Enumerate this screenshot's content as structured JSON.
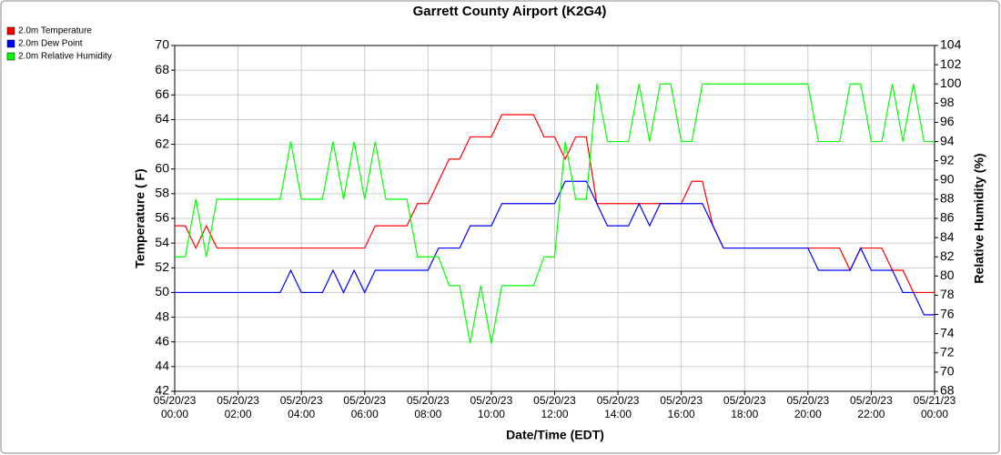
{
  "chart_data": {
    "type": "line",
    "title": "Garrett County Airport (K2G4)",
    "xlabel": "Date/Time (EDT)",
    "ylabel": "Temperature ( F)",
    "y2label": "Relative Humidity (%)",
    "x": [
      "05/20/23 00:00",
      "05/20/23 00:20",
      "05/20/23 00:40",
      "05/20/23 01:00",
      "05/20/23 01:20",
      "05/20/23 01:40",
      "05/20/23 02:00",
      "05/20/23 02:20",
      "05/20/23 02:40",
      "05/20/23 03:00",
      "05/20/23 03:20",
      "05/20/23 03:40",
      "05/20/23 04:00",
      "05/20/23 04:20",
      "05/20/23 04:40",
      "05/20/23 05:00",
      "05/20/23 05:20",
      "05/20/23 05:40",
      "05/20/23 06:00",
      "05/20/23 06:20",
      "05/20/23 06:40",
      "05/20/23 07:00",
      "05/20/23 07:20",
      "05/20/23 07:40",
      "05/20/23 08:00",
      "05/20/23 08:20",
      "05/20/23 08:40",
      "05/20/23 09:00",
      "05/20/23 09:20",
      "05/20/23 09:40",
      "05/20/23 10:00",
      "05/20/23 10:20",
      "05/20/23 10:40",
      "05/20/23 11:00",
      "05/20/23 11:20",
      "05/20/23 11:40",
      "05/20/23 12:00",
      "05/20/23 12:20",
      "05/20/23 12:40",
      "05/20/23 13:00",
      "05/20/23 13:20",
      "05/20/23 13:40",
      "05/20/23 14:00",
      "05/20/23 14:20",
      "05/20/23 14:40",
      "05/20/23 15:00",
      "05/20/23 15:20",
      "05/20/23 15:40",
      "05/20/23 16:00",
      "05/20/23 16:20",
      "05/20/23 16:40",
      "05/20/23 17:00",
      "05/20/23 17:20",
      "05/20/23 17:40",
      "05/20/23 18:00",
      "05/20/23 18:20",
      "05/20/23 18:40",
      "05/20/23 19:00",
      "05/20/23 19:20",
      "05/20/23 19:40",
      "05/20/23 20:00",
      "05/20/23 20:20",
      "05/20/23 20:40",
      "05/20/23 21:00",
      "05/20/23 21:20",
      "05/20/23 21:40",
      "05/20/23 22:00",
      "05/20/23 22:20",
      "05/20/23 22:40",
      "05/20/23 23:00",
      "05/20/23 23:20",
      "05/20/23 23:40",
      "05/21/23 00:00"
    ],
    "series": [
      {
        "name": "2.0m Temperature",
        "color": "#ff0000",
        "axis": "y",
        "values": [
          55.4,
          55.4,
          53.6,
          55.4,
          53.6,
          53.6,
          53.6,
          53.6,
          53.6,
          53.6,
          53.6,
          53.6,
          53.6,
          53.6,
          53.6,
          53.6,
          53.6,
          53.6,
          53.6,
          55.4,
          55.4,
          55.4,
          55.4,
          57.2,
          57.2,
          59.0,
          60.8,
          60.8,
          62.6,
          62.6,
          62.6,
          64.4,
          64.4,
          64.4,
          64.4,
          62.6,
          62.6,
          60.8,
          62.6,
          62.6,
          57.2,
          57.2,
          57.2,
          57.2,
          57.2,
          57.2,
          57.2,
          57.2,
          57.2,
          59.0,
          59.0,
          55.4,
          53.6,
          53.6,
          53.6,
          53.6,
          53.6,
          53.6,
          53.6,
          53.6,
          53.6,
          53.6,
          53.6,
          53.6,
          51.8,
          53.6,
          53.6,
          53.6,
          51.8,
          51.8,
          50.0,
          50.0,
          50.0
        ]
      },
      {
        "name": "2.0m Dew Point",
        "color": "#0000ff",
        "axis": "y",
        "values": [
          50.0,
          50.0,
          50.0,
          50.0,
          50.0,
          50.0,
          50.0,
          50.0,
          50.0,
          50.0,
          50.0,
          51.8,
          50.0,
          50.0,
          50.0,
          51.8,
          50.0,
          51.8,
          50.0,
          51.8,
          51.8,
          51.8,
          51.8,
          51.8,
          51.8,
          53.6,
          53.6,
          53.6,
          55.4,
          55.4,
          55.4,
          57.2,
          57.2,
          57.2,
          57.2,
          57.2,
          57.2,
          59.0,
          59.0,
          59.0,
          57.2,
          55.4,
          55.4,
          55.4,
          57.2,
          55.4,
          57.2,
          57.2,
          57.2,
          57.2,
          57.2,
          55.4,
          53.6,
          53.6,
          53.6,
          53.6,
          53.6,
          53.6,
          53.6,
          53.6,
          53.6,
          51.8,
          51.8,
          51.8,
          51.8,
          53.6,
          51.8,
          51.8,
          51.8,
          50.0,
          50.0,
          48.2,
          48.2
        ]
      },
      {
        "name": "2.0m Relative Humidity",
        "color": "#00ff00",
        "axis": "y2",
        "values": [
          82,
          82,
          88,
          82,
          88,
          88,
          88,
          88,
          88,
          88,
          88,
          94,
          88,
          88,
          88,
          94,
          88,
          94,
          88,
          94,
          88,
          88,
          88,
          82,
          82,
          82,
          79,
          79,
          73,
          79,
          73,
          79,
          79,
          79,
          79,
          82,
          82,
          94,
          88,
          88,
          100,
          94,
          94,
          94,
          100,
          94,
          100,
          100,
          94,
          94,
          100,
          100,
          100,
          100,
          100,
          100,
          100,
          100,
          100,
          100,
          100,
          94,
          94,
          94,
          100,
          100,
          94,
          94,
          100,
          94,
          100,
          94,
          94
        ]
      }
    ],
    "xlim": [
      "05/20/23 00:00",
      "05/21/23 00:00"
    ],
    "xticks": [
      "05/20/23 00:00",
      "05/20/23 02:00",
      "05/20/23 04:00",
      "05/20/23 06:00",
      "05/20/23 08:00",
      "05/20/23 10:00",
      "05/20/23 12:00",
      "05/20/23 14:00",
      "05/20/23 16:00",
      "05/20/23 18:00",
      "05/20/23 20:00",
      "05/20/23 22:00",
      "05/21/23 00:00"
    ],
    "ylim": [
      42,
      70
    ],
    "yticks": [
      42,
      44,
      46,
      48,
      50,
      52,
      54,
      56,
      58,
      60,
      62,
      64,
      66,
      68,
      70
    ],
    "y2lim": [
      68,
      104
    ],
    "y2ticks": [
      68,
      70,
      72,
      74,
      76,
      78,
      80,
      82,
      84,
      86,
      88,
      90,
      92,
      94,
      96,
      98,
      100,
      102,
      104
    ],
    "grid": true
  }
}
